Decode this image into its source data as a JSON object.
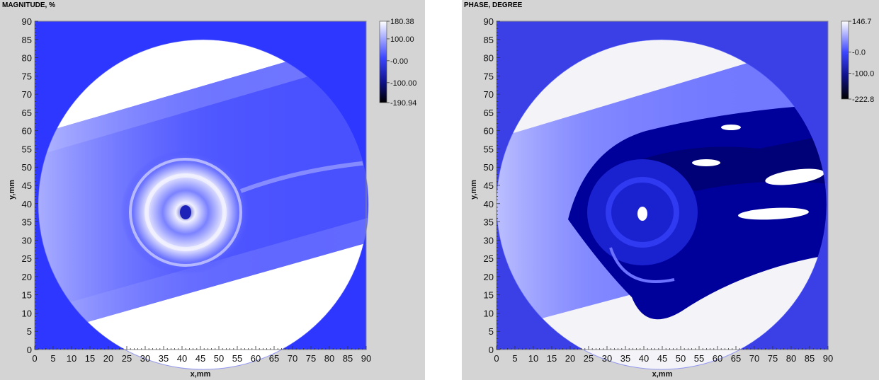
{
  "chart_data": [
    {
      "type": "heatmap",
      "title": "MAGNITUDE, %",
      "xlabel": "x,mm",
      "ylabel": "y,mm",
      "xlim": [
        0,
        90
      ],
      "ylim": [
        0,
        90
      ],
      "x_ticks": [
        "0",
        "5",
        "10",
        "15",
        "20",
        "25",
        "30",
        "35",
        "40",
        "45",
        "50",
        "55",
        "60",
        "65",
        "70",
        "75",
        "80",
        "85",
        "90"
      ],
      "y_ticks": [
        "0",
        "5",
        "10",
        "15",
        "20",
        "25",
        "30",
        "35",
        "40",
        "45",
        "50",
        "55",
        "60",
        "65",
        "70",
        "75",
        "80",
        "85",
        "90"
      ],
      "colorbar": {
        "max": 180.38,
        "min": -190.94,
        "tick_labels": [
          "180.38",
          "100.00",
          "-0.00",
          "-100.00",
          "-190.94"
        ],
        "colors": [
          "#ffffff",
          "#2d37ff",
          "#000000"
        ]
      },
      "background_color": "#2d37ff"
    },
    {
      "type": "heatmap",
      "title": "PHASE, DEGREE",
      "xlabel": "x,mm",
      "ylabel": "y,mm",
      "xlim": [
        0,
        90
      ],
      "ylim": [
        0,
        90
      ],
      "x_ticks": [
        "0",
        "5",
        "10",
        "15",
        "20",
        "25",
        "30",
        "35",
        "40",
        "45",
        "50",
        "55",
        "60",
        "65",
        "70",
        "75",
        "80",
        "85",
        "90"
      ],
      "y_ticks": [
        "0",
        "5",
        "10",
        "15",
        "20",
        "25",
        "30",
        "35",
        "40",
        "45",
        "50",
        "55",
        "60",
        "65",
        "70",
        "75",
        "80",
        "85",
        "90"
      ],
      "colorbar": {
        "max": 146.7,
        "min": -222.8,
        "tick_labels": [
          "146.7",
          "-0.0",
          "-100.0",
          "-222.8"
        ],
        "colors": [
          "#ffffff",
          "#2d37ff",
          "#000000"
        ]
      },
      "background_color": "#3a40e6"
    }
  ]
}
